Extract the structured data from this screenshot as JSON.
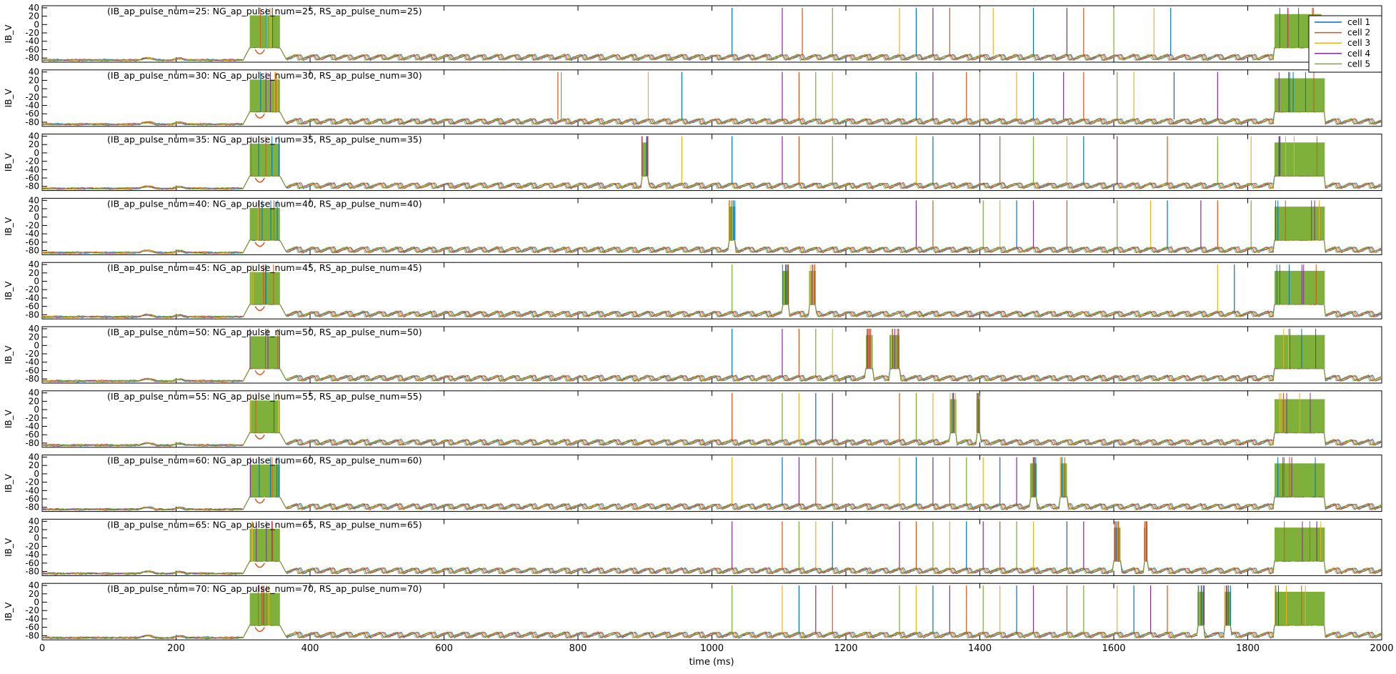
{
  "figure": {
    "xlabel": "time (ms)",
    "x_ticks": [
      "0",
      "200",
      "400",
      "600",
      "800",
      "1000",
      "1200",
      "1400",
      "1600",
      "1800",
      "2000"
    ],
    "legend": [
      "cell 1",
      "cell 2",
      "cell 3",
      "cell 4",
      "cell 5"
    ],
    "colors": [
      "#0072BD",
      "#D95319",
      "#EDB120",
      "#7E2F8E",
      "#77AC30"
    ]
  },
  "chart_data": {
    "type": "line",
    "xlabel": "time (ms)",
    "xlim": [
      0,
      2000
    ],
    "x_ticks": [
      0,
      200,
      400,
      600,
      800,
      1000,
      1200,
      1400,
      1600,
      1800,
      2000
    ],
    "ylabel": "IB_V",
    "ylim": [
      -90,
      45
    ],
    "y_ticks": [
      40,
      20,
      0,
      -20,
      -40,
      -60,
      -80
    ],
    "legend_placement": "top-right",
    "series": [
      {
        "name": "cell 1",
        "color": "#0072BD"
      },
      {
        "name": "cell 2",
        "color": "#D95319"
      },
      {
        "name": "cell 3",
        "color": "#EDB120"
      },
      {
        "name": "cell 4",
        "color": "#7E2F8E"
      },
      {
        "name": "cell 5",
        "color": "#77AC30"
      }
    ],
    "common_features": {
      "resting_potential_mV": -85,
      "input_pulse_burst_ms": [
        310,
        355
      ],
      "final_burst_plateau_mV": -55,
      "spike_peak_mV": 40
    },
    "panels": [
      {
        "label": "(IB_ap_pulse_num=25: NG_ap_pulse_num=25, RS_ap_pulse_num=25)",
        "bursts": [
          [
            1840,
            1910
          ]
        ],
        "spikes": [
          1030,
          1105,
          1135,
          1180,
          1280,
          1305,
          1330,
          1355,
          1400,
          1420,
          1480,
          1530,
          1555,
          1600,
          1660,
          1685
        ]
      },
      {
        "label": "(IB_ap_pulse_num=30: NG_ap_pulse_num=30, RS_ap_pulse_num=30)",
        "bursts": [
          [
            1840,
            1915
          ]
        ],
        "spikes": [
          770,
          775,
          905,
          955,
          1105,
          1130,
          1155,
          1180,
          1305,
          1330,
          1380,
          1400,
          1455,
          1480,
          1525,
          1555,
          1605,
          1630,
          1690,
          1755
        ]
      },
      {
        "label": "(IB_ap_pulse_num=35: NG_ap_pulse_num=35, RS_ap_pulse_num=35)",
        "bursts": [
          [
            895,
            905
          ],
          [
            1840,
            1915
          ]
        ],
        "spikes": [
          955,
          1030,
          1105,
          1130,
          1180,
          1305,
          1330,
          1400,
          1430,
          1480,
          1530,
          1555,
          1605,
          1680,
          1755,
          1805
        ]
      },
      {
        "label": "(IB_ap_pulse_num=40: NG_ap_pulse_num=40, RS_ap_pulse_num=40)",
        "bursts": [
          [
            1025,
            1035
          ],
          [
            1840,
            1915
          ]
        ],
        "spikes": [
          1305,
          1330,
          1405,
          1430,
          1455,
          1480,
          1530,
          1605,
          1655,
          1680,
          1730,
          1755,
          1805
        ]
      },
      {
        "label": "(IB_ap_pulse_num=45: NG_ap_pulse_num=45, RS_ap_pulse_num=45)",
        "bursts": [
          [
            1105,
            1115
          ],
          [
            1145,
            1155
          ],
          [
            1840,
            1915
          ]
        ],
        "spikes": [
          1030,
          1755,
          1780
        ]
      },
      {
        "label": "(IB_ap_pulse_num=50: NG_ap_pulse_num=50, RS_ap_pulse_num=50)",
        "bursts": [
          [
            1230,
            1240
          ],
          [
            1265,
            1280
          ],
          [
            1840,
            1915
          ]
        ],
        "spikes": [
          1030,
          1105,
          1130,
          1155,
          1180
        ]
      },
      {
        "label": "(IB_ap_pulse_num=55: NG_ap_pulse_num=55, RS_ap_pulse_num=55)",
        "bursts": [
          [
            1355,
            1365
          ],
          [
            1395,
            1400
          ],
          [
            1840,
            1915
          ]
        ],
        "spikes": [
          1030,
          1105,
          1130,
          1155,
          1180,
          1280,
          1305,
          1330
        ]
      },
      {
        "label": "(IB_ap_pulse_num=60: NG_ap_pulse_num=60, RS_ap_pulse_num=60)",
        "bursts": [
          [
            1475,
            1485
          ],
          [
            1520,
            1530
          ],
          [
            1840,
            1915
          ]
        ],
        "spikes": [
          1030,
          1105,
          1130,
          1155,
          1180,
          1280,
          1305,
          1330,
          1355,
          1380,
          1405,
          1430,
          1455
        ]
      },
      {
        "label": "(IB_ap_pulse_num=65: NG_ap_pulse_num=65, RS_ap_pulse_num=65)",
        "bursts": [
          [
            1600,
            1610
          ],
          [
            1645,
            1650
          ],
          [
            1840,
            1915
          ]
        ],
        "spikes": [
          1030,
          1105,
          1130,
          1155,
          1180,
          1280,
          1305,
          1330,
          1355,
          1380,
          1405,
          1430,
          1455,
          1480,
          1530,
          1555
        ]
      },
      {
        "label": "(IB_ap_pulse_num=70: NG_ap_pulse_num=70, RS_ap_pulse_num=70)",
        "bursts": [
          [
            1725,
            1735
          ],
          [
            1765,
            1775
          ],
          [
            1840,
            1915
          ]
        ],
        "spikes": [
          1030,
          1105,
          1130,
          1155,
          1180,
          1280,
          1305,
          1330,
          1355,
          1380,
          1405,
          1430,
          1455,
          1480,
          1530,
          1555,
          1605,
          1630,
          1655,
          1680
        ]
      }
    ]
  }
}
